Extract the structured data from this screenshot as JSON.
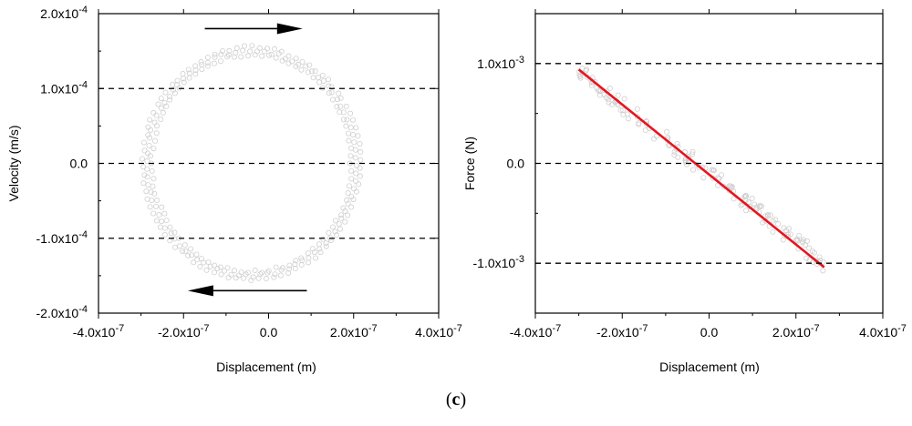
{
  "caption": {
    "open": "(",
    "letter": "c",
    "close": ")"
  },
  "colors": {
    "axis": "#000000",
    "marker": "#cfcfcf",
    "fit_line": "#e8141e",
    "reference_line": "#000000"
  },
  "chart_data": [
    {
      "type": "scatter",
      "title": "",
      "xlabel": "Displacement (m)",
      "ylabel": "Velocity (m/s)",
      "xlim": [
        -4e-07,
        4e-07
      ],
      "ylim": [
        -0.0002,
        0.0002
      ],
      "xticks": [
        {
          "value": -4e-07,
          "mant": "-4.0x10",
          "exp": "-7"
        },
        {
          "value": -2e-07,
          "mant": "-2.0x10",
          "exp": "-7"
        },
        {
          "value": 0,
          "mant": "0.0",
          "exp": ""
        },
        {
          "value": 2e-07,
          "mant": "2.0x10",
          "exp": "-7"
        },
        {
          "value": 4e-07,
          "mant": "4.0x10",
          "exp": "-7"
        }
      ],
      "yticks": [
        {
          "value": 0.0002,
          "mant": "2.0x10",
          "exp": "-4"
        },
        {
          "value": 0.0001,
          "mant": "1.0x10",
          "exp": "-4"
        },
        {
          "value": 0,
          "mant": "0.0",
          "exp": ""
        },
        {
          "value": -0.0001,
          "mant": "-1.0x10",
          "exp": "-4"
        },
        {
          "value": -0.0002,
          "mant": "-2.0x10",
          "exp": "-4"
        }
      ],
      "reference_lines_y": [
        0.0001,
        0,
        -0.0001
      ],
      "direction_arrows": [
        {
          "direction": "right",
          "y": 0.00018,
          "x_from": -1.5e-07,
          "x_to": 8e-08
        },
        {
          "direction": "left",
          "y": -0.00017,
          "x_from": 9e-08,
          "x_to": -1.9e-07
        }
      ],
      "series": [
        {
          "shape": "ellipse-loop",
          "center_x": -4e-08,
          "center_y": 0,
          "radius_x": [
            2.35e-07,
            2.55e-07
          ],
          "radius_y": [
            0.000145,
            0.000155
          ],
          "points_per_loop": 90,
          "loops": 3
        }
      ],
      "grid": false,
      "legend": "none"
    },
    {
      "type": "scatter",
      "title": "",
      "xlabel": "Displacement (m)",
      "ylabel": "Force (N)",
      "xlim": [
        -4e-07,
        4e-07
      ],
      "ylim": [
        -0.0015,
        0.0015
      ],
      "xticks": [
        {
          "value": -4e-07,
          "mant": "-4.0x10",
          "exp": "-7"
        },
        {
          "value": -2e-07,
          "mant": "-2.0x10",
          "exp": "-7"
        },
        {
          "value": 0,
          "mant": "0.0",
          "exp": ""
        },
        {
          "value": 2e-07,
          "mant": "2.0x10",
          "exp": "-7"
        },
        {
          "value": 4e-07,
          "mant": "4.0x10",
          "exp": "-7"
        }
      ],
      "yticks": [
        {
          "value": 0.001,
          "mant": "1.0x10",
          "exp": "-3"
        },
        {
          "value": 0,
          "mant": "0.0",
          "exp": ""
        },
        {
          "value": -0.001,
          "mant": "-1.0x10",
          "exp": "-3"
        }
      ],
      "reference_lines_y": [
        0.001,
        0,
        -0.001
      ],
      "series": [
        {
          "shape": "band",
          "x_range": [
            -3e-07,
            2.65e-07
          ],
          "slope": -3400.0,
          "intercept": -0.0001,
          "half_width": 9e-05,
          "count": 160
        },
        {
          "shape": "line",
          "x": [
            -3e-07,
            2.65e-07
          ],
          "y": [
            0.00094,
            -0.00104
          ]
        }
      ],
      "grid": false,
      "legend": "none"
    }
  ]
}
